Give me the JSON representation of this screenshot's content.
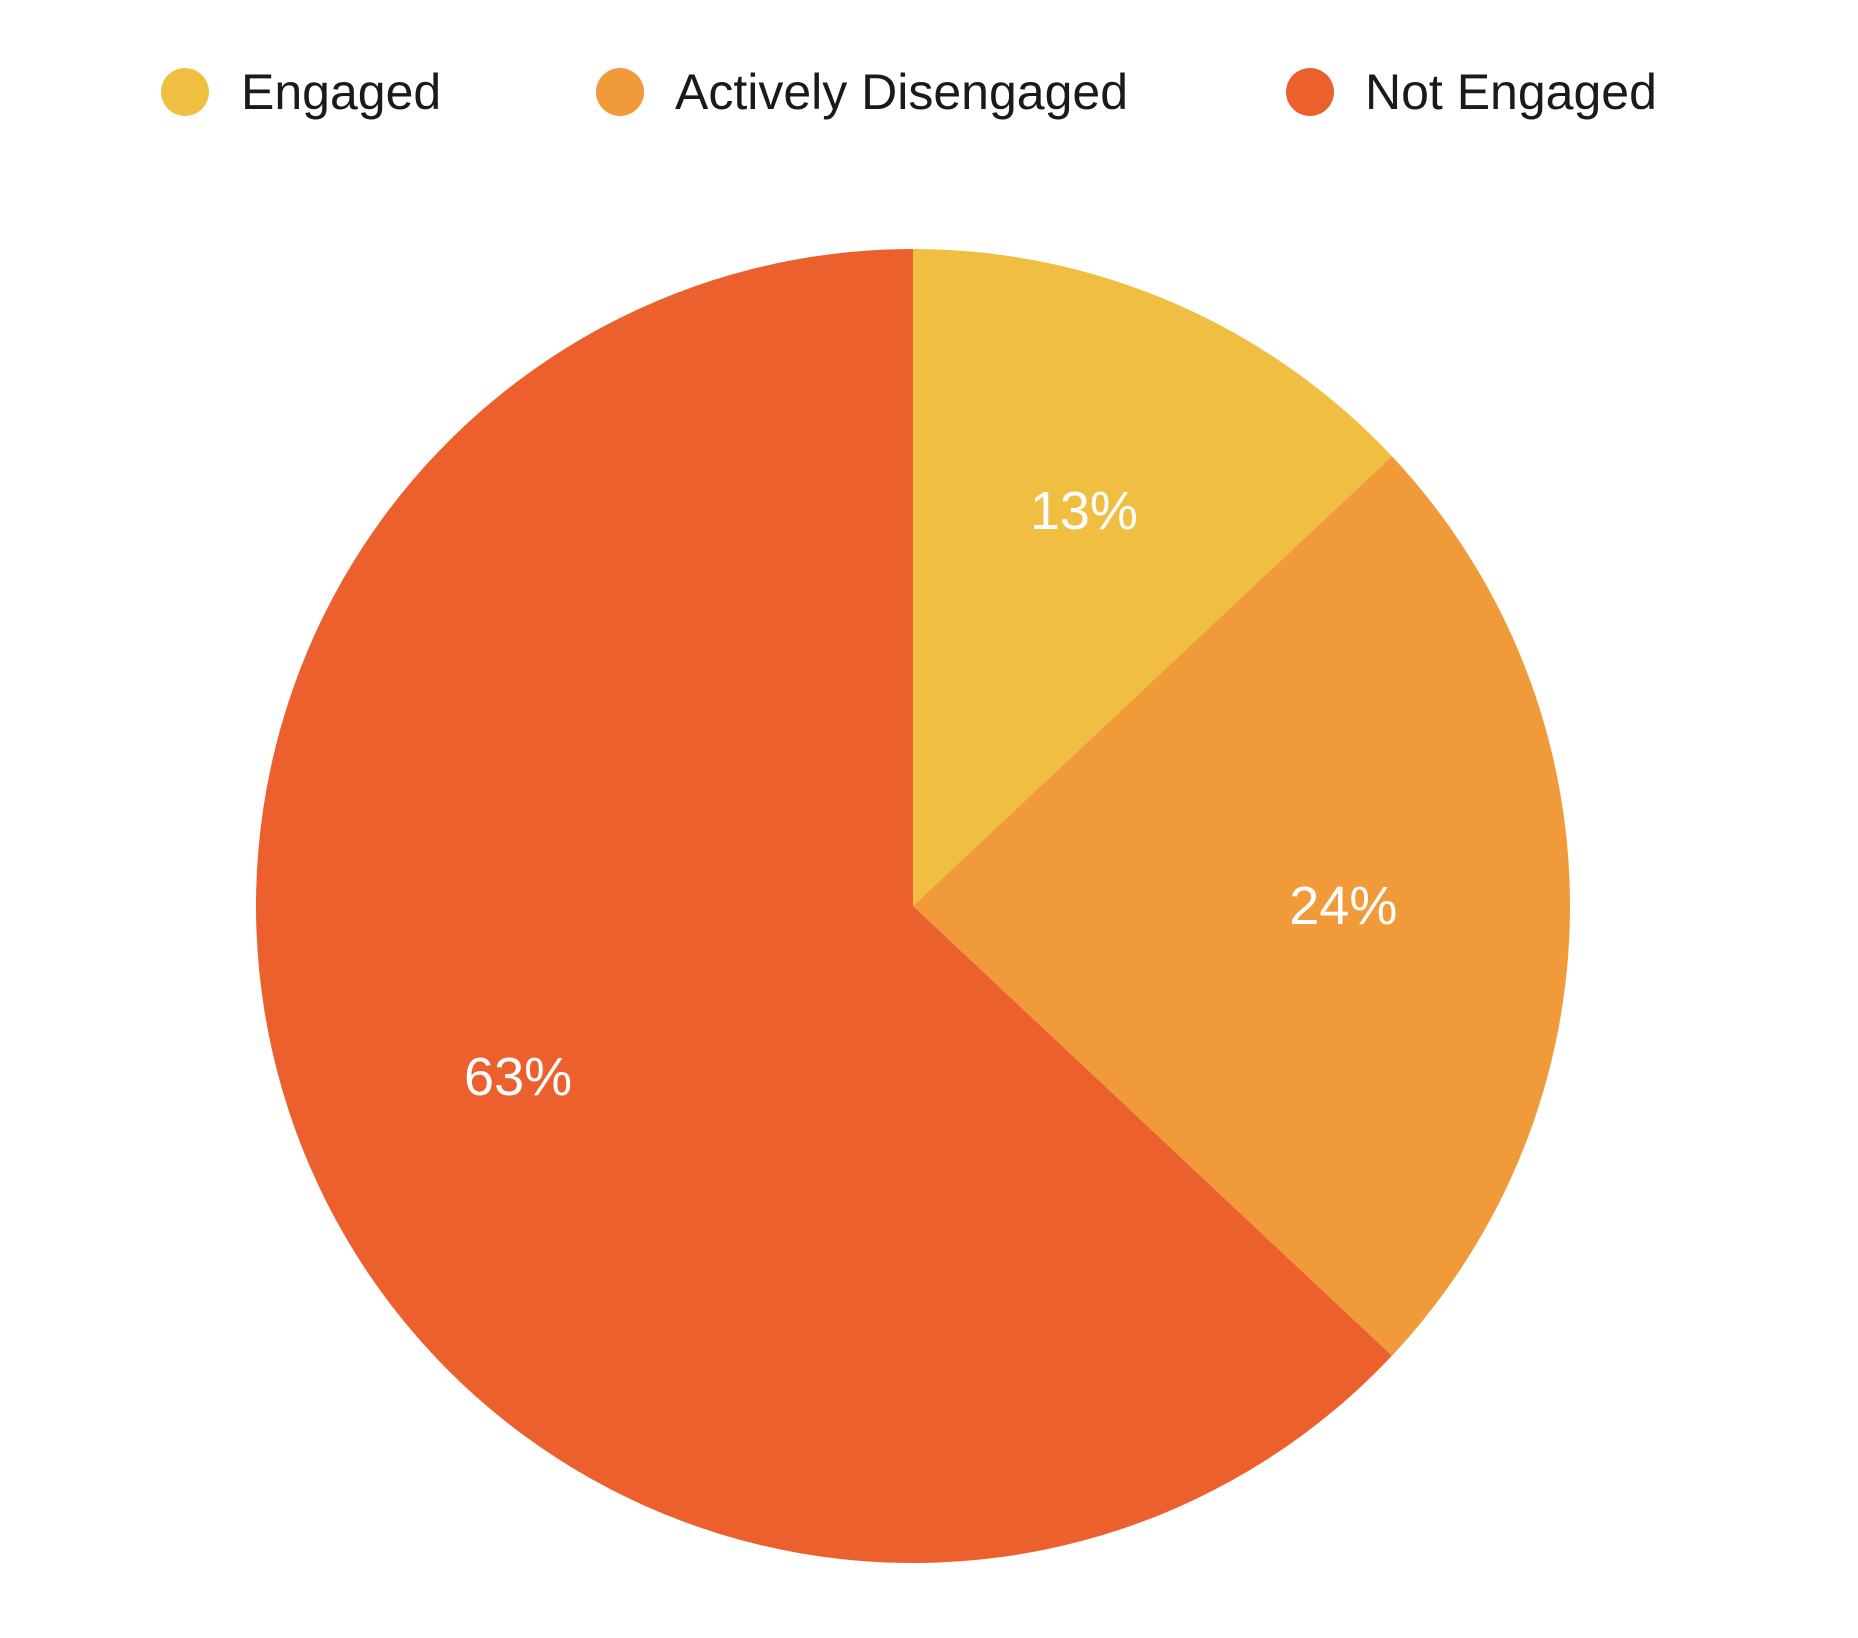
{
  "chart_data": {
    "type": "pie",
    "title": "",
    "legend_position": "top",
    "start_angle": "12 o'clock",
    "direction": "clockwise",
    "categories": [
      "Engaged",
      "Actively Disengaged",
      "Not Engaged"
    ],
    "values": [
      13,
      24,
      63
    ],
    "unit": "%",
    "data_labels": [
      "13%",
      "24%",
      "63%"
    ],
    "colors": [
      "#F0BE41",
      "#F09A3A",
      "#EB602C"
    ]
  }
}
